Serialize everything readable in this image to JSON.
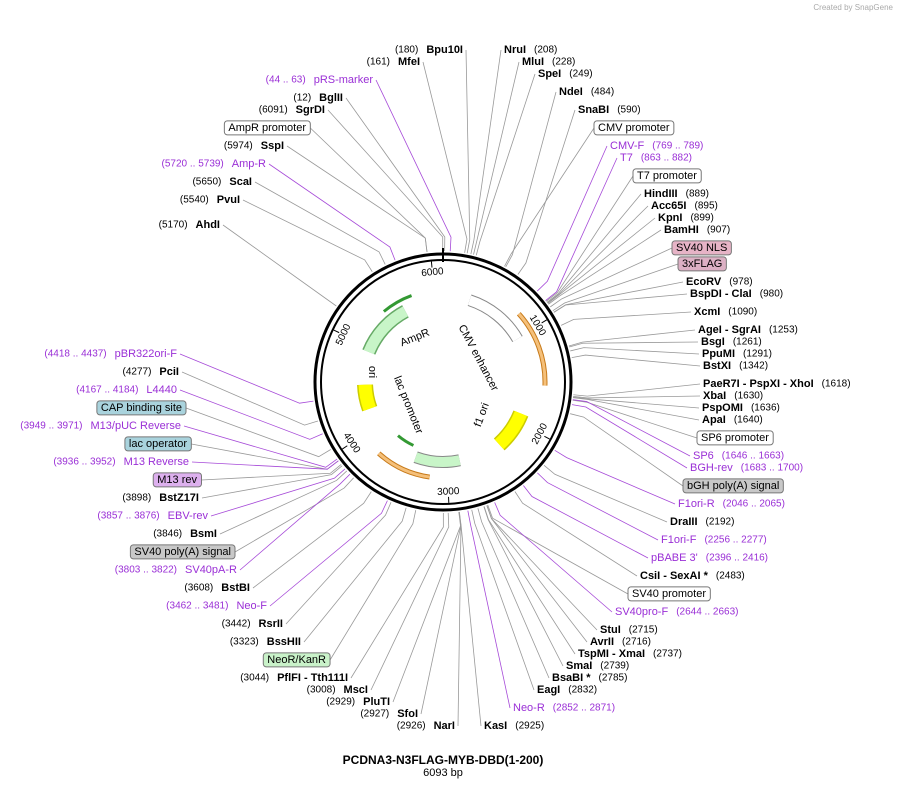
{
  "watermark": "Created by SnapGene",
  "map": {
    "name": "PCDNA3-N3FLAG-MYB-DBD(1-200)",
    "length": {
      "value": 6093,
      "label": "6093 bp"
    },
    "ticks": [
      1000,
      2000,
      3000,
      4000,
      5000,
      6000
    ],
    "features": [
      {
        "name": "AmpR"
      },
      {
        "name": "ori"
      },
      {
        "name": "lac promoter"
      },
      {
        "name": "CMV enhancer"
      },
      {
        "name": "f1 ori"
      }
    ]
  },
  "left": [
    {
      "kind": "enzyme",
      "name": "Bpu10I",
      "site": {
        "value": 180,
        "label": "(180)"
      }
    },
    {
      "kind": "enzyme",
      "name": "MfeI",
      "site": {
        "value": 161,
        "label": "(161)"
      }
    },
    {
      "kind": "primer",
      "name": "pRS-marker",
      "range": {
        "start": 44,
        "end": 63,
        "label": "(44 .. 63)"
      }
    },
    {
      "kind": "enzyme",
      "name": "BglII",
      "site": {
        "value": 12,
        "label": "(12)"
      }
    },
    {
      "kind": "enzyme",
      "name": "SgrDI",
      "site": {
        "value": 6091,
        "label": "(6091)"
      }
    },
    {
      "kind": "feature",
      "name": "AmpR promoter",
      "color": "#ffffff"
    },
    {
      "kind": "enzyme",
      "name": "SspI",
      "site": {
        "value": 5974,
        "label": "(5974)"
      }
    },
    {
      "kind": "primer",
      "name": "Amp-R",
      "range": {
        "start": 5720,
        "end": 5739,
        "label": "(5720 .. 5739)"
      }
    },
    {
      "kind": "enzyme",
      "name": "ScaI",
      "site": {
        "value": 5650,
        "label": "(5650)"
      }
    },
    {
      "kind": "enzyme",
      "name": "PvuI",
      "site": {
        "value": 5540,
        "label": "(5540)"
      }
    },
    {
      "kind": "enzyme",
      "name": "AhdI",
      "site": {
        "value": 5170,
        "label": "(5170)"
      }
    },
    {
      "kind": "primer",
      "name": "pBR322ori-F",
      "range": {
        "start": 4418,
        "end": 4437,
        "label": "(4418 .. 4437)"
      }
    },
    {
      "kind": "enzyme",
      "name": "PciI",
      "site": {
        "value": 4277,
        "label": "(4277)"
      }
    },
    {
      "kind": "primer",
      "name": "L4440",
      "range": {
        "start": 4167,
        "end": 4184,
        "label": "(4167 .. 4184)"
      }
    },
    {
      "kind": "feature",
      "name": "CAP binding site",
      "color": "#a9d3dd"
    },
    {
      "kind": "primer",
      "name": "M13/pUC Reverse",
      "range": {
        "start": 3949,
        "end": 3971,
        "label": "(3949 .. 3971)"
      }
    },
    {
      "kind": "feature",
      "name": "lac operator",
      "color": "#a9d3dd"
    },
    {
      "kind": "primer",
      "name": "M13 Reverse",
      "range": {
        "start": 3936,
        "end": 3952,
        "label": "(3936 .. 3952)"
      }
    },
    {
      "kind": "feature",
      "name": "M13 rev",
      "color": "#ddb0ee"
    },
    {
      "kind": "enzyme",
      "name": "BstZ17I",
      "site": {
        "value": 3898,
        "label": "(3898)"
      }
    },
    {
      "kind": "primer",
      "name": "EBV-rev",
      "range": {
        "start": 3857,
        "end": 3876,
        "label": "(3857 .. 3876)"
      }
    },
    {
      "kind": "enzyme",
      "name": "BsmI",
      "site": {
        "value": 3846,
        "label": "(3846)"
      }
    },
    {
      "kind": "feature",
      "name": "SV40 poly(A) signal",
      "color": "#c8c8c8"
    },
    {
      "kind": "primer",
      "name": "SV40pA-R",
      "range": {
        "start": 3803,
        "end": 3822,
        "label": "(3803 .. 3822)"
      }
    },
    {
      "kind": "enzyme",
      "name": "BstBI",
      "site": {
        "value": 3608,
        "label": "(3608)"
      }
    },
    {
      "kind": "primer",
      "name": "Neo-F",
      "range": {
        "start": 3462,
        "end": 3481,
        "label": "(3462 .. 3481)"
      }
    },
    {
      "kind": "enzyme",
      "name": "RsrII",
      "site": {
        "value": 3442,
        "label": "(3442)"
      }
    },
    {
      "kind": "enzyme",
      "name": "BssHII",
      "site": {
        "value": 3323,
        "label": "(3323)"
      }
    },
    {
      "kind": "feature",
      "name": "NeoR/KanR",
      "color": "#c9f2c9"
    },
    {
      "kind": "enzyme",
      "name": "PflFI - Tth111I",
      "site": {
        "value": 3044,
        "label": "(3044)"
      }
    },
    {
      "kind": "enzyme",
      "name": "MscI",
      "site": {
        "value": 3008,
        "label": "(3008)"
      }
    },
    {
      "kind": "enzyme",
      "name": "PluTI",
      "site": {
        "value": 2929,
        "label": "(2929)"
      }
    },
    {
      "kind": "enzyme",
      "name": "SfoI",
      "site": {
        "value": 2927,
        "label": "(2927)"
      }
    },
    {
      "kind": "enzyme",
      "name": "NarI",
      "site": {
        "value": 2926,
        "label": "(2926)"
      }
    }
  ],
  "right": [
    {
      "kind": "enzyme",
      "name": "NruI",
      "site": {
        "value": 208,
        "label": "(208)"
      }
    },
    {
      "kind": "enzyme",
      "name": "MluI",
      "site": {
        "value": 228,
        "label": "(228)"
      }
    },
    {
      "kind": "enzyme",
      "name": "SpeI",
      "site": {
        "value": 249,
        "label": "(249)"
      }
    },
    {
      "kind": "enzyme",
      "name": "NdeI",
      "site": {
        "value": 484,
        "label": "(484)"
      }
    },
    {
      "kind": "enzyme",
      "name": "SnaBI",
      "site": {
        "value": 590,
        "label": "(590)"
      }
    },
    {
      "kind": "feature",
      "name": "CMV promoter",
      "color": "#ffffff"
    },
    {
      "kind": "primer",
      "name": "CMV-F",
      "range": {
        "start": 769,
        "end": 789,
        "label": "(769 .. 789)"
      }
    },
    {
      "kind": "primer",
      "name": "T7",
      "range": {
        "start": 863,
        "end": 882,
        "label": "(863 .. 882)"
      }
    },
    {
      "kind": "feature",
      "name": "T7 promoter",
      "color": "#ffffff"
    },
    {
      "kind": "enzyme",
      "name": "HindIII",
      "site": {
        "value": 889,
        "label": "(889)"
      }
    },
    {
      "kind": "enzyme",
      "name": "Acc65I",
      "site": {
        "value": 895,
        "label": "(895)"
      }
    },
    {
      "kind": "enzyme",
      "name": "KpnI",
      "site": {
        "value": 899,
        "label": "(899)"
      }
    },
    {
      "kind": "enzyme",
      "name": "BamHI",
      "site": {
        "value": 907,
        "label": "(907)"
      }
    },
    {
      "kind": "feature",
      "name": "SV40 NLS",
      "color": "#e6b3c6"
    },
    {
      "kind": "feature",
      "name": "3xFLAG",
      "color": "#dcb0c4"
    },
    {
      "kind": "enzyme",
      "name": "EcoRV",
      "site": {
        "value": 978,
        "label": "(978)"
      }
    },
    {
      "kind": "enzyme",
      "name": "BspDI - ClaI",
      "site": {
        "value": 980,
        "label": "(980)"
      }
    },
    {
      "kind": "enzyme",
      "name": "XcmI",
      "site": {
        "value": 1090,
        "label": "(1090)"
      }
    },
    {
      "kind": "enzyme",
      "name": "AgeI - SgrAI",
      "site": {
        "value": 1253,
        "label": "(1253)"
      }
    },
    {
      "kind": "enzyme",
      "name": "BsgI",
      "site": {
        "value": 1261,
        "label": "(1261)"
      }
    },
    {
      "kind": "enzyme",
      "name": "PpuMI",
      "site": {
        "value": 1291,
        "label": "(1291)"
      }
    },
    {
      "kind": "enzyme",
      "name": "BstXI",
      "site": {
        "value": 1342,
        "label": "(1342)"
      }
    },
    {
      "kind": "enzyme",
      "name": "PaeR7I - PspXI - XhoI",
      "site": {
        "value": 1618,
        "label": "(1618)"
      }
    },
    {
      "kind": "enzyme",
      "name": "XbaI",
      "site": {
        "value": 1630,
        "label": "(1630)"
      }
    },
    {
      "kind": "enzyme",
      "name": "PspOMI",
      "site": {
        "value": 1636,
        "label": "(1636)"
      }
    },
    {
      "kind": "enzyme",
      "name": "ApaI",
      "site": {
        "value": 1640,
        "label": "(1640)"
      }
    },
    {
      "kind": "feature",
      "name": "SP6 promoter",
      "color": "#ffffff"
    },
    {
      "kind": "primer",
      "name": "SP6",
      "range": {
        "start": 1646,
        "end": 1663,
        "label": "(1646 .. 1663)"
      }
    },
    {
      "kind": "primer",
      "name": "BGH-rev",
      "range": {
        "start": 1683,
        "end": 1700,
        "label": "(1683 .. 1700)"
      }
    },
    {
      "kind": "feature",
      "name": "bGH poly(A) signal",
      "color": "#c8c8c8"
    },
    {
      "kind": "primer",
      "name": "F1ori-R",
      "range": {
        "start": 2046,
        "end": 2065,
        "label": "(2046 .. 2065)"
      }
    },
    {
      "kind": "enzyme",
      "name": "DraIII",
      "site": {
        "value": 2192,
        "label": "(2192)"
      }
    },
    {
      "kind": "primer",
      "name": "F1ori-F",
      "range": {
        "start": 2256,
        "end": 2277,
        "label": "(2256 .. 2277)"
      }
    },
    {
      "kind": "primer",
      "name": "pBABE 3'",
      "range": {
        "start": 2396,
        "end": 2416,
        "label": "(2396 .. 2416)"
      }
    },
    {
      "kind": "enzyme",
      "name": "CsiI - SexAI *",
      "site": {
        "value": 2483,
        "label": "(2483)"
      }
    },
    {
      "kind": "feature",
      "name": "SV40 promoter",
      "color": "#ffffff"
    },
    {
      "kind": "primer",
      "name": "SV40pro-F",
      "range": {
        "start": 2644,
        "end": 2663,
        "label": "(2644 .. 2663)"
      }
    },
    {
      "kind": "enzyme",
      "name": "StuI",
      "site": {
        "value": 2715,
        "label": "(2715)"
      }
    },
    {
      "kind": "enzyme",
      "name": "AvrII",
      "site": {
        "value": 2716,
        "label": "(2716)"
      }
    },
    {
      "kind": "enzyme",
      "name": "TspMI - XmaI",
      "site": {
        "value": 2737,
        "label": "(2737)"
      }
    },
    {
      "kind": "enzyme",
      "name": "SmaI",
      "site": {
        "value": 2739,
        "label": "(2739)"
      }
    },
    {
      "kind": "enzyme",
      "name": "BsaBI *",
      "site": {
        "value": 2785,
        "label": "(2785)"
      }
    },
    {
      "kind": "enzyme",
      "name": "EagI",
      "site": {
        "value": 2832,
        "label": "(2832)"
      }
    },
    {
      "kind": "primer",
      "name": "Neo-R",
      "range": {
        "start": 2852,
        "end": 2871,
        "label": "(2852 .. 2871)"
      }
    },
    {
      "kind": "enzyme",
      "name": "KasI",
      "site": {
        "value": 2925,
        "label": "(2925)"
      }
    }
  ]
}
